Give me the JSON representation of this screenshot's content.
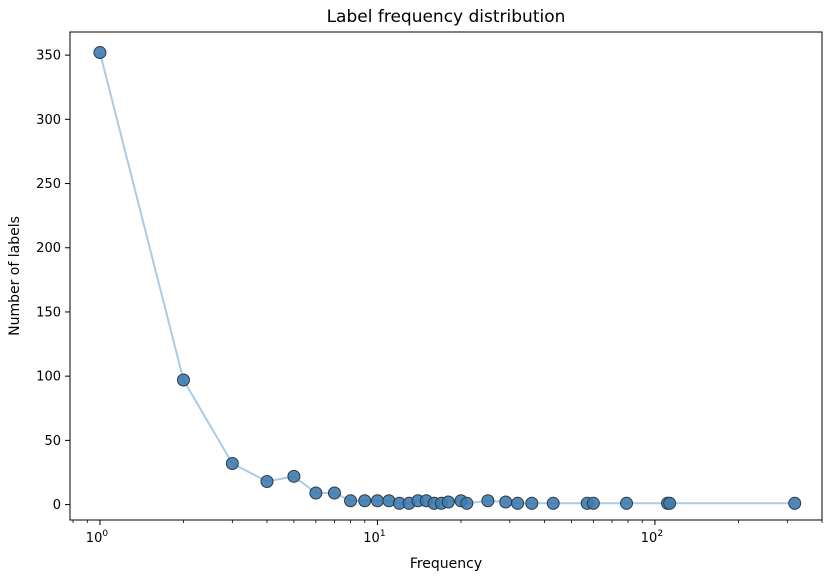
{
  "chart_data": {
    "type": "line",
    "title": "Label frequency distribution",
    "xlabel": "Frequency",
    "ylabel": "Number of labels",
    "x_scale": "log",
    "xlim": [
      0.78,
      400
    ],
    "ylim": [
      -12,
      368
    ],
    "y_ticks": [
      0,
      50,
      100,
      150,
      200,
      250,
      300,
      350
    ],
    "y_tick_labels": [
      "0",
      "50",
      "100",
      "150",
      "200",
      "250",
      "300",
      "350"
    ],
    "x_ticks": [
      1,
      10,
      100
    ],
    "x_tick_labels": [
      {
        "base": "10",
        "exp": "0"
      },
      {
        "base": "10",
        "exp": "1"
      },
      {
        "base": "10",
        "exp": "2"
      }
    ],
    "grid": false,
    "line_color": "#a9cbe6",
    "marker_color": "#3e7bb0",
    "marker_edge": "#2b3a47",
    "x": [
      1,
      2,
      3,
      4,
      5,
      6,
      7,
      8,
      9,
      10,
      11,
      12,
      13,
      14,
      15,
      16,
      17,
      18,
      20,
      21,
      25,
      29,
      32,
      36,
      43,
      57,
      60,
      79,
      111,
      113,
      319
    ],
    "y": [
      352,
      97,
      32,
      18,
      22,
      9,
      9,
      3,
      3,
      3,
      3,
      1,
      1,
      3,
      3,
      1,
      1,
      2,
      3,
      1,
      3,
      2,
      1,
      1,
      1,
      1,
      1,
      1,
      1,
      1,
      1
    ]
  }
}
